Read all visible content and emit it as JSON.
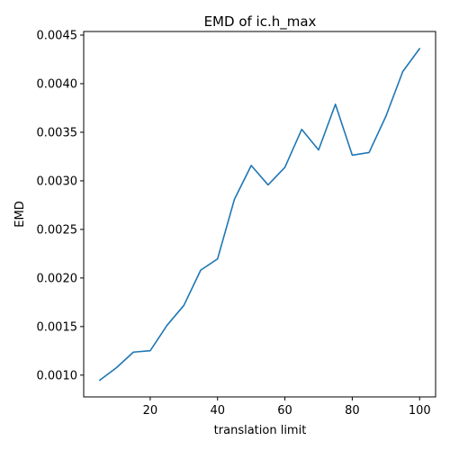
{
  "chart_data": {
    "type": "line",
    "title": "EMD of ic.h_max",
    "xlabel": "translation limit",
    "ylabel": "EMD",
    "xlim": [
      0.25,
      104.75
    ],
    "ylim": [
      0.000776,
      0.004537
    ],
    "xticks": [
      20,
      40,
      60,
      80,
      100
    ],
    "xtick_labels": [
      "20",
      "40",
      "60",
      "80",
      "100"
    ],
    "yticks": [
      0.001,
      0.0015,
      0.002,
      0.0025,
      0.003,
      0.0035,
      0.004,
      0.0045
    ],
    "ytick_labels": [
      "0.0010",
      "0.0015",
      "0.0020",
      "0.0025",
      "0.0030",
      "0.0035",
      "0.0040",
      "0.0045"
    ],
    "grid": false,
    "series": [
      {
        "color": "#1f77b4",
        "x": [
          5,
          10,
          15,
          20,
          25,
          30,
          35,
          40,
          45,
          50,
          55,
          60,
          65,
          70,
          75,
          80,
          85,
          90,
          95,
          100
        ],
        "y": [
          0.000947,
          0.001077,
          0.001237,
          0.001251,
          0.001513,
          0.001718,
          0.002081,
          0.002196,
          0.002809,
          0.003158,
          0.002958,
          0.003139,
          0.00353,
          0.003318,
          0.003788,
          0.003264,
          0.003292,
          0.003665,
          0.004125,
          0.004361
        ]
      }
    ]
  }
}
